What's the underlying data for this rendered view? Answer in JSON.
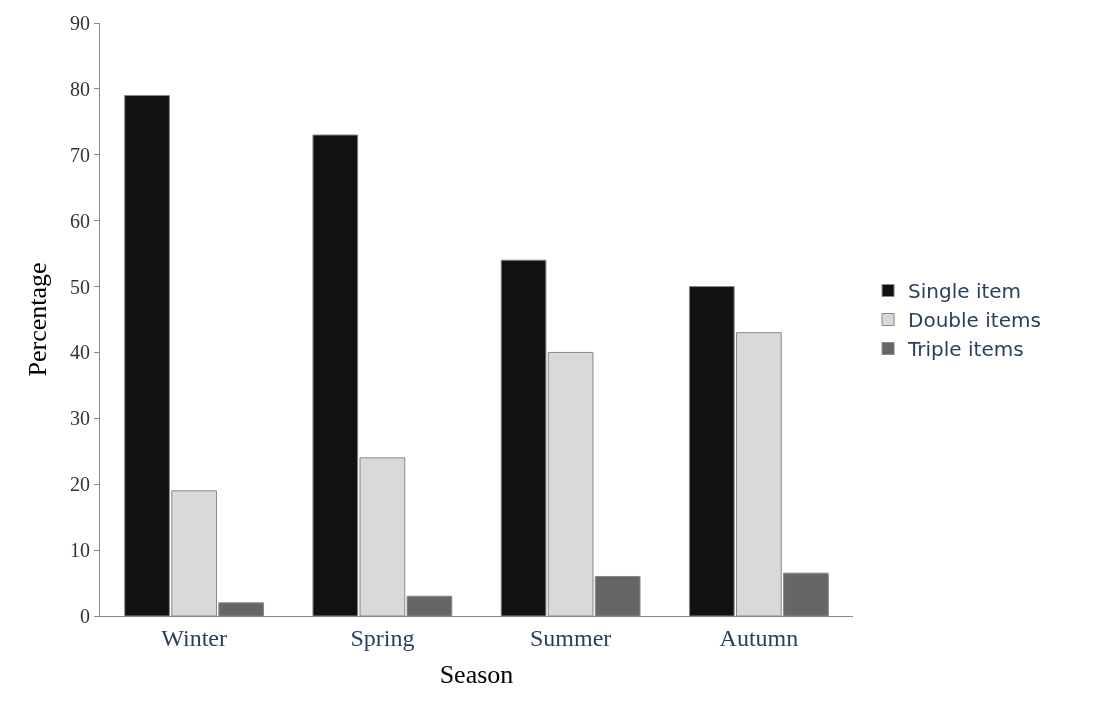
{
  "chart_data": {
    "type": "bar",
    "xlabel": "Season",
    "ylabel": "Percentage",
    "categories": [
      "Winter",
      "Spring",
      "Summer",
      "Autumn"
    ],
    "series": [
      {
        "name": "Single item",
        "color": "#111111",
        "values": [
          79,
          73,
          54,
          50
        ]
      },
      {
        "name": "Double items",
        "color": "#d9d9d9",
        "values": [
          19,
          24,
          40,
          43
        ]
      },
      {
        "name": "Triple items",
        "color": "#666666",
        "values": [
          2,
          3,
          6,
          6.5
        ]
      }
    ],
    "ylim": [
      0,
      90
    ],
    "yticks": [
      0,
      10,
      20,
      30,
      40,
      50,
      60,
      70,
      80,
      90
    ],
    "grid": false,
    "legend": "right"
  }
}
